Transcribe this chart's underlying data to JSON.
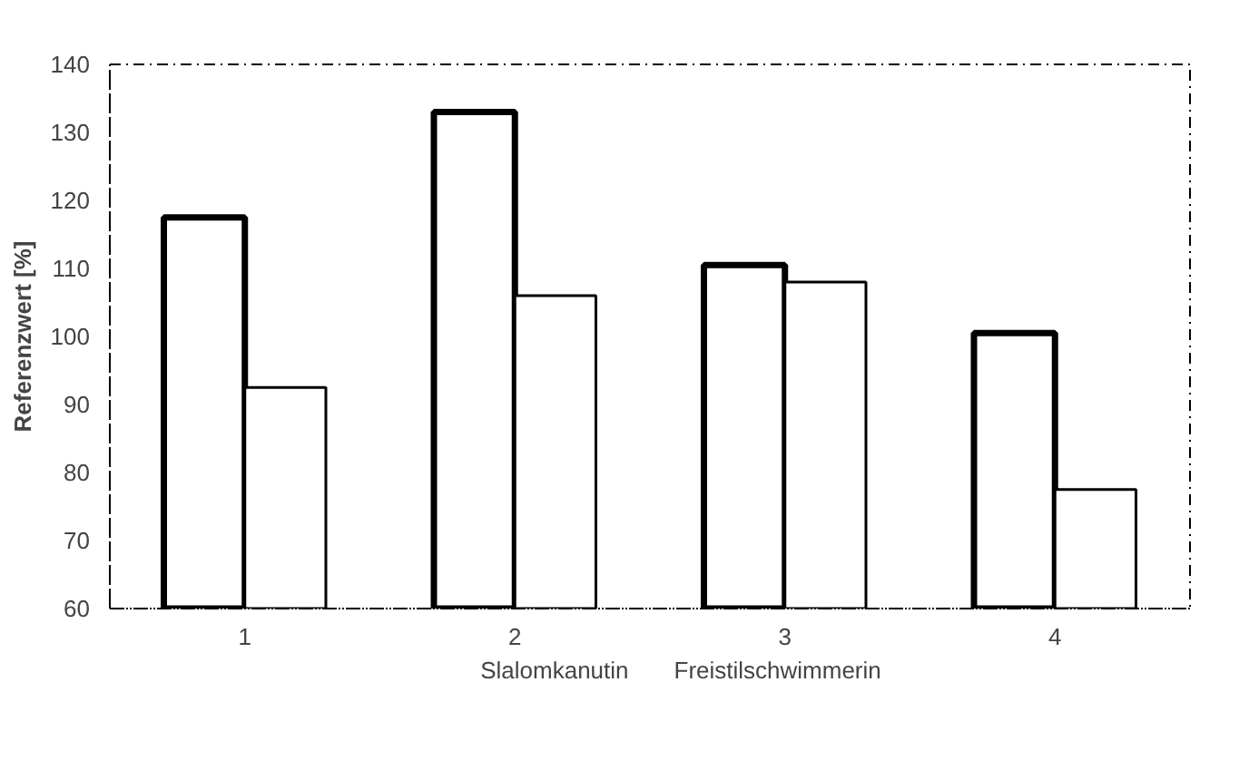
{
  "chart_data": {
    "type": "bar",
    "ylabel": "Referenzwert [%]",
    "categories": [
      "1",
      "2",
      "3",
      "4"
    ],
    "series": [
      {
        "name": "Slalomkanutin",
        "color": "#000000",
        "values": [
          117.5,
          133,
          110.5,
          100.5
        ]
      },
      {
        "name": "Freistilschwimmerin",
        "color": "#000000",
        "values": [
          92.5,
          106,
          108,
          77.5
        ]
      }
    ],
    "ylim": [
      60,
      140
    ],
    "yticks": [
      60,
      70,
      80,
      90,
      100,
      110,
      120,
      130,
      140
    ],
    "grid": false,
    "legend": "bottom"
  }
}
